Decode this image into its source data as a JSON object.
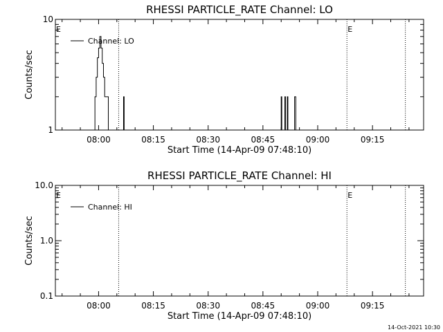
{
  "footer_timestamp": "14-Oct-2021 10:30",
  "chart_data": [
    {
      "type": "line",
      "title": "RHESSI PARTICLE_RATE Channel: LO",
      "xlabel": "Start Time (14-Apr-09 07:48:10)",
      "ylabel": "Counts/sec",
      "yscale": "log",
      "ylim": [
        1,
        10
      ],
      "ytick_labels": [
        "1",
        "10"
      ],
      "xlim": [
        "07:48:10",
        "09:29:00"
      ],
      "xtick_labels": [
        "08:00",
        "08:15",
        "08:30",
        "08:45",
        "09:00",
        "09:15"
      ],
      "legend": "top-left",
      "series": [
        {
          "name": "Channel: LO",
          "x": [
            "07:58:40",
            "07:59:00",
            "07:59:20",
            "07:59:40",
            "08:00:00",
            "08:00:20",
            "08:00:40",
            "08:01:00",
            "08:01:20",
            "08:01:40",
            "08:02:00",
            "08:02:20",
            "08:02:40",
            "08:03:00",
            "08:06:40",
            "08:06:50",
            "08:07:00",
            "08:49:50",
            "08:50:00",
            "08:50:10",
            "08:50:50",
            "08:51:00",
            "08:51:10",
            "08:51:30",
            "08:51:40",
            "08:51:50",
            "08:52:00",
            "08:53:30",
            "08:53:40",
            "08:53:50",
            "08:54:00"
          ],
          "y": [
            1,
            2,
            3,
            4.5,
            5.5,
            7,
            5.5,
            4,
            3,
            2,
            2,
            2,
            1,
            1,
            1,
            2,
            1,
            1,
            2,
            1,
            1,
            2,
            1,
            1,
            2,
            1,
            1,
            1,
            2,
            2,
            1
          ]
        }
      ],
      "markers": [
        {
          "label": "E",
          "time": "07:48:10"
        },
        {
          "label": "E",
          "time": "09:08:00"
        }
      ],
      "dotted_lines": [
        "08:05:30",
        "09:08:00",
        "09:24:00"
      ]
    },
    {
      "type": "line",
      "title": "RHESSI PARTICLE_RATE Channel: HI",
      "xlabel": "Start Time (14-Apr-09 07:48:10)",
      "ylabel": "Counts/sec",
      "yscale": "log",
      "ylim": [
        0.1,
        10
      ],
      "ytick_labels": [
        "0.1",
        "1.0",
        "10.0"
      ],
      "xlim": [
        "07:48:10",
        "09:29:00"
      ],
      "xtick_labels": [
        "08:00",
        "08:15",
        "08:30",
        "08:45",
        "09:00",
        "09:15"
      ],
      "legend": "top-left",
      "series": [
        {
          "name": "Channel: HI",
          "x": [],
          "y": []
        }
      ],
      "markers": [
        {
          "label": "E",
          "time": "07:48:10"
        },
        {
          "label": "E",
          "time": "09:08:00"
        }
      ],
      "dotted_lines": [
        "08:05:30",
        "09:08:00",
        "09:24:00"
      ]
    }
  ]
}
